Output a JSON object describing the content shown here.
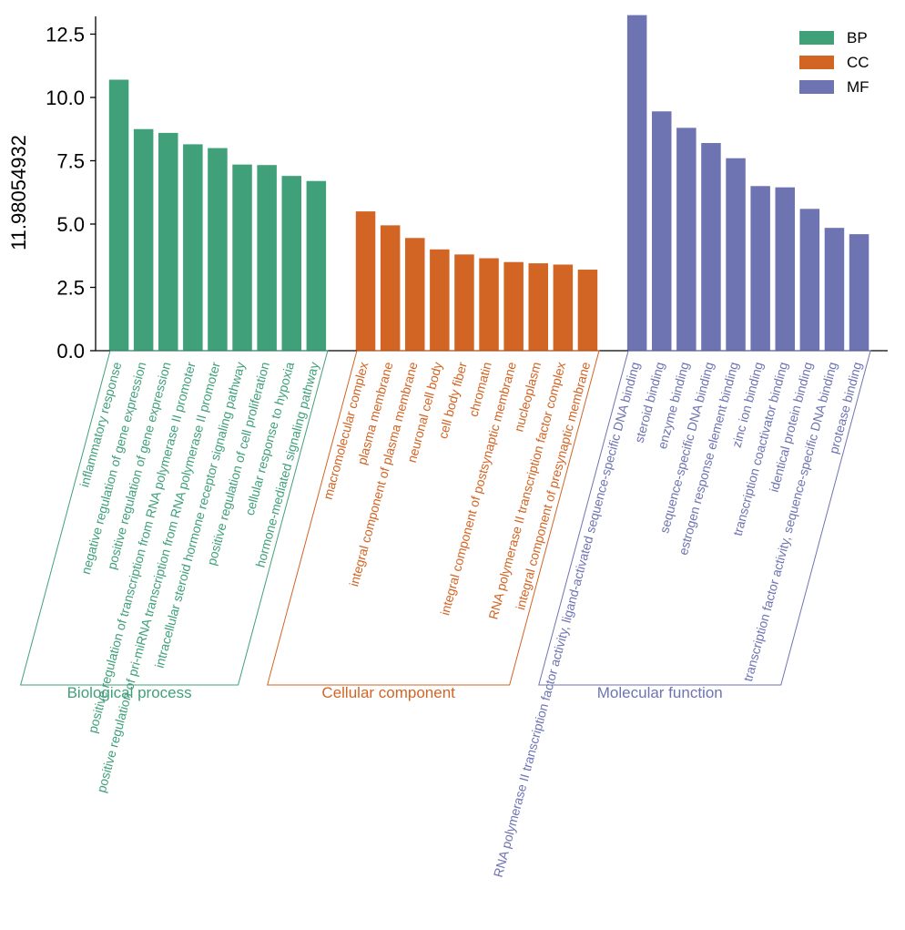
{
  "chart_data": {
    "type": "bar",
    "title": "",
    "xlabel": "",
    "ylabel": "11.98054932",
    "ylim": [
      0,
      13.2
    ],
    "yticks": [
      0.0,
      2.5,
      5.0,
      7.5,
      10.0,
      12.5
    ],
    "ytick_labels": [
      "0.0",
      "2.5",
      "5.0",
      "7.5",
      "10.0",
      "12.5"
    ],
    "legend": {
      "placement": "top-right",
      "entries": [
        {
          "name": "BP",
          "color": "#40a07a"
        },
        {
          "name": "CC",
          "color": "#d26424"
        },
        {
          "name": "MF",
          "color": "#6e74b2"
        }
      ]
    },
    "groups": [
      {
        "key": "BP",
        "label": "Biological process",
        "color": "#40a07a",
        "categories": [
          "inflammatory response",
          "negative regulation of gene expression",
          "positive regulation of gene expression",
          "positive regulation of transcription from RNA polymerase II promoter",
          "positive regulation of pri-miRNA transcription from RNA polymerase II promoter",
          "intracellular steroid hormone receptor signaling pathway",
          "positive regulation of cell proliferation",
          "cellular response to hypoxia",
          "hormone-mediated signaling pathway"
        ],
        "values": [
          10.7,
          8.75,
          8.6,
          8.15,
          8.0,
          7.35,
          7.33,
          6.9,
          6.7
        ]
      },
      {
        "key": "CC",
        "label": "Cellular component",
        "color": "#d26424",
        "categories": [
          "macromolecular complex",
          "plasma membrane",
          "integral component of plasma membrane",
          "neuronal cell body",
          "cell body fiber",
          "chromatin",
          "integral component of postsynaptic membrane",
          "nucleoplasm",
          "RNA polymerase II transcription factor complex",
          "integral component of presynaptic membrane"
        ],
        "values": [
          5.5,
          4.95,
          4.45,
          4.0,
          3.8,
          3.65,
          3.5,
          3.45,
          3.4,
          3.2
        ]
      },
      {
        "key": "MF",
        "label": "Molecular function",
        "color": "#6e74b2",
        "categories": [
          "RNA polymerase II transcription factor activity, ligand-activated sequence-specific DNA binding",
          "steroid binding",
          "enzyme binding",
          "sequence-specific DNA binding",
          "estrogen response element binding",
          "zinc ion binding",
          "transcription coactivator binding",
          "identical protein binding",
          "transcription factor activity, sequence-specific DNA binding",
          "protease binding"
        ],
        "values": [
          13.25,
          9.45,
          8.8,
          8.2,
          7.6,
          6.5,
          6.45,
          5.6,
          4.85,
          4.6
        ]
      }
    ]
  }
}
